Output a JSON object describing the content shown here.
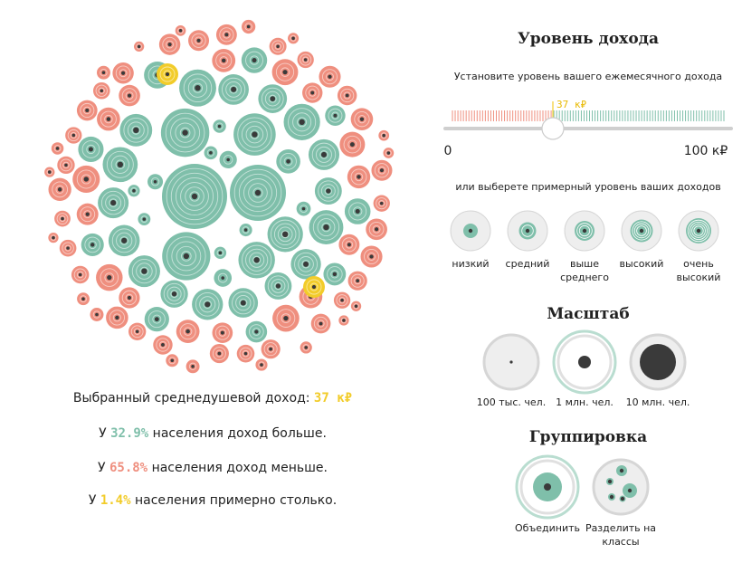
{
  "income_panel": {
    "title": "Уровень дохода",
    "instruction": "Установите уровень вашего ежемесячного дохода",
    "slider_min": "0",
    "slider_max": "100 к₽",
    "slider_value": "37 к₽",
    "slider_fraction": 0.37,
    "choose_prompt": "или выберете примерный уровень ваших доходов",
    "levels": [
      {
        "label": "низкий"
      },
      {
        "label": "средний"
      },
      {
        "label": "выше\nсреднего"
      },
      {
        "label": "высокий"
      },
      {
        "label": "очень\nвысокий"
      }
    ]
  },
  "scale_panel": {
    "title": "Масштаб",
    "options": [
      {
        "label": "100 тыс. чел."
      },
      {
        "label": "1 млн. чел."
      },
      {
        "label": "10 млн. чел."
      }
    ],
    "selected": 1
  },
  "grouping_panel": {
    "title": "Группировка",
    "options": [
      {
        "label": "Объединить"
      },
      {
        "label": "Разделить на\nклассы"
      }
    ],
    "selected": 0
  },
  "stats": {
    "selected_label": "Выбранный среднедушевой доход:",
    "selected_value": "37 к₽",
    "more_prefix": "У",
    "more_pct": "32.9%",
    "more_suffix": "населения доход больше.",
    "less_prefix": "У",
    "less_pct": "65.8%",
    "less_suffix": "населения доход меньше.",
    "same_prefix": "У",
    "same_pct": "1.4%",
    "same_suffix": "населения примерно столько."
  },
  "colors": {
    "higher": "#7fbfaa",
    "lower": "#ef8f7f",
    "same": "#f2cc2a",
    "dot": "#3a3a3a"
  }
}
